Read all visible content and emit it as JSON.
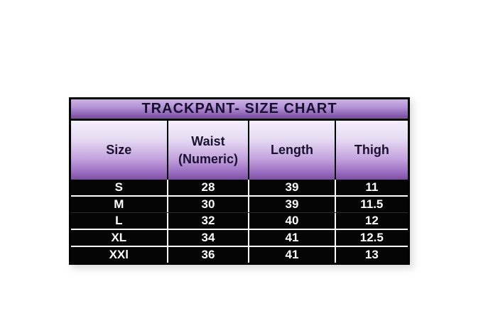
{
  "page": {
    "background": "#ffffff"
  },
  "chart_data": {
    "type": "table",
    "title": "TRACKPANT- SIZE CHART",
    "columns": [
      "Size",
      "Waist (Numeric)",
      "Length",
      "Thigh"
    ],
    "rows": [
      [
        "S",
        "28",
        "39",
        "11"
      ],
      [
        "M",
        "30",
        "39",
        "11.5"
      ],
      [
        "L",
        "32",
        "40",
        "12"
      ],
      [
        "XL",
        "34",
        "41",
        "12.5"
      ],
      [
        "XXl",
        "36",
        "41",
        "13"
      ]
    ]
  },
  "table": {
    "title": "TRACKPANT- SIZE CHART",
    "header": {
      "size": "Size",
      "waist_line1": "Waist",
      "waist_line2": "(Numeric)",
      "length": "Length",
      "thigh": "Thigh"
    },
    "rows": [
      {
        "size": "S",
        "waist": "28",
        "length": "39",
        "thigh": "11"
      },
      {
        "size": "M",
        "waist": "30",
        "length": "39",
        "thigh": "11.5"
      },
      {
        "size": "L",
        "waist": "32",
        "length": "40",
        "thigh": "12"
      },
      {
        "size": "XL",
        "waist": "34",
        "length": "41",
        "thigh": "12.5"
      },
      {
        "size": "XXl",
        "waist": "36",
        "length": "41",
        "thigh": "13"
      }
    ],
    "colors": {
      "title_gradient_top": "#cdb3e6",
      "title_gradient_bottom": "#7a4f9e",
      "header_gradient_top": "#f5f0fb",
      "header_gradient_bottom": "#7b4fa0",
      "title_text": "#170f30",
      "header_text": "#1a1130",
      "data_background": "#050505",
      "data_text": "#ffffff",
      "border": "#000000",
      "row_divider": "#ffffff"
    }
  }
}
